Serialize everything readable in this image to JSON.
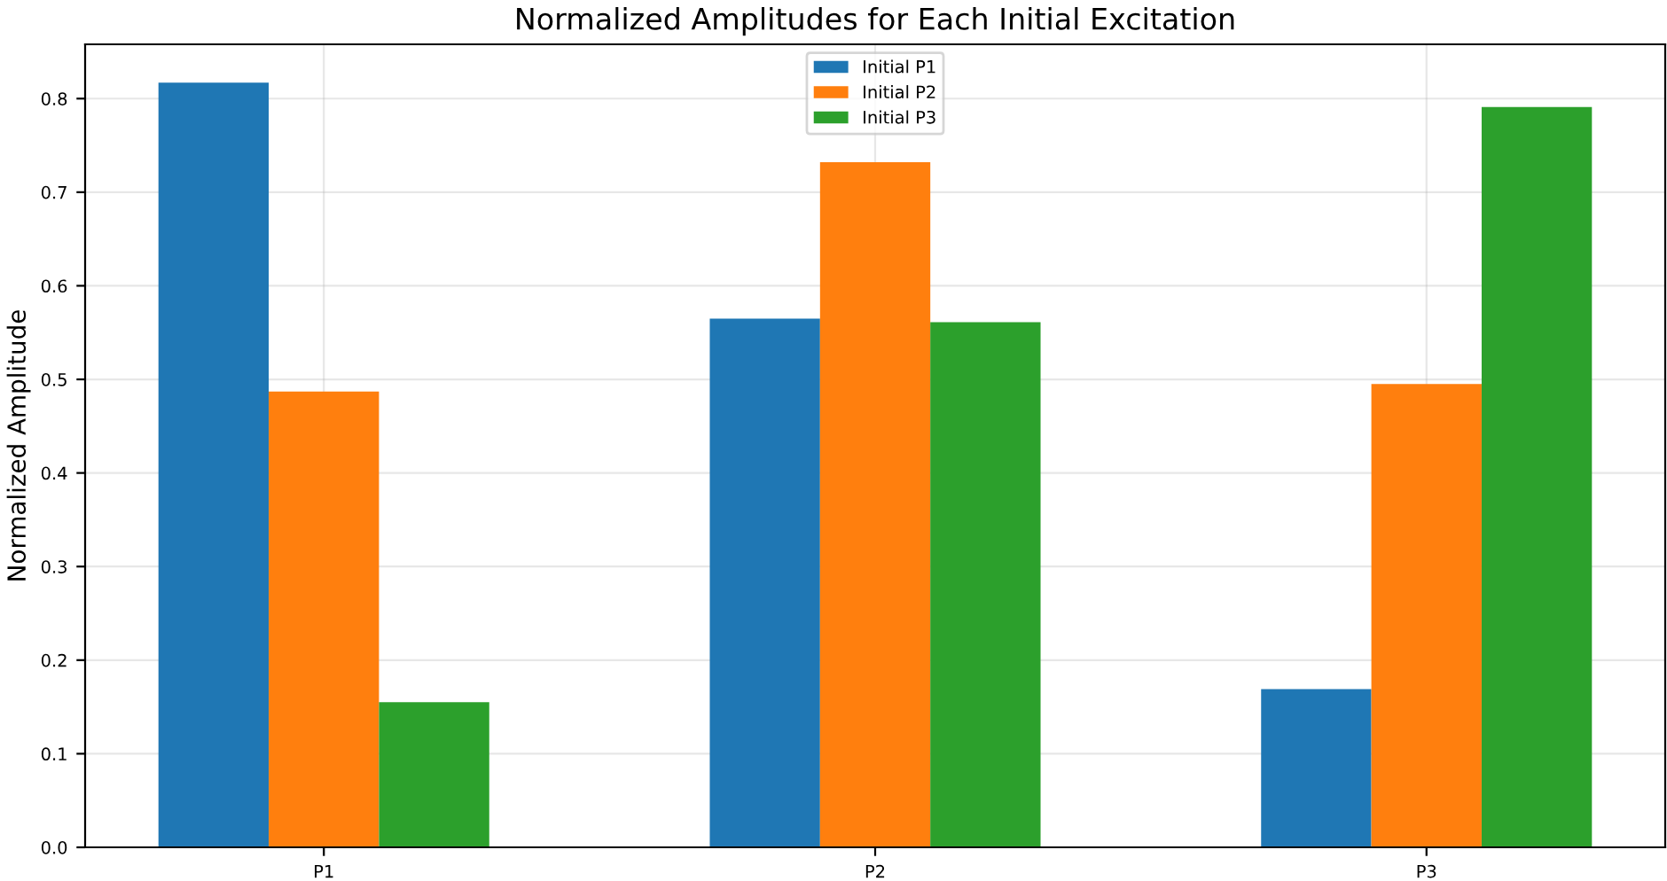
{
  "chart_data": {
    "type": "bar",
    "title": "Normalized Amplitudes for Each Initial Excitation",
    "ylabel": "Normalized Amplitude",
    "categories": [
      "P1",
      "P2",
      "P3"
    ],
    "series": [
      {
        "name": "Initial P1",
        "color": "#1f77b4",
        "values": [
          0.817,
          0.565,
          0.169
        ]
      },
      {
        "name": "Initial P2",
        "color": "#ff7f0e",
        "values": [
          0.487,
          0.732,
          0.495
        ]
      },
      {
        "name": "Initial P3",
        "color": "#2ca02c",
        "values": [
          0.155,
          0.561,
          0.791
        ]
      }
    ],
    "ylim": [
      0,
      0.858
    ],
    "yticks": [
      {
        "value": 0,
        "label": "0.0"
      },
      0.1,
      0.2,
      0.3,
      0.4,
      0.5,
      0.6,
      0.7,
      0.8
    ],
    "grid": true,
    "legend": "top"
  }
}
